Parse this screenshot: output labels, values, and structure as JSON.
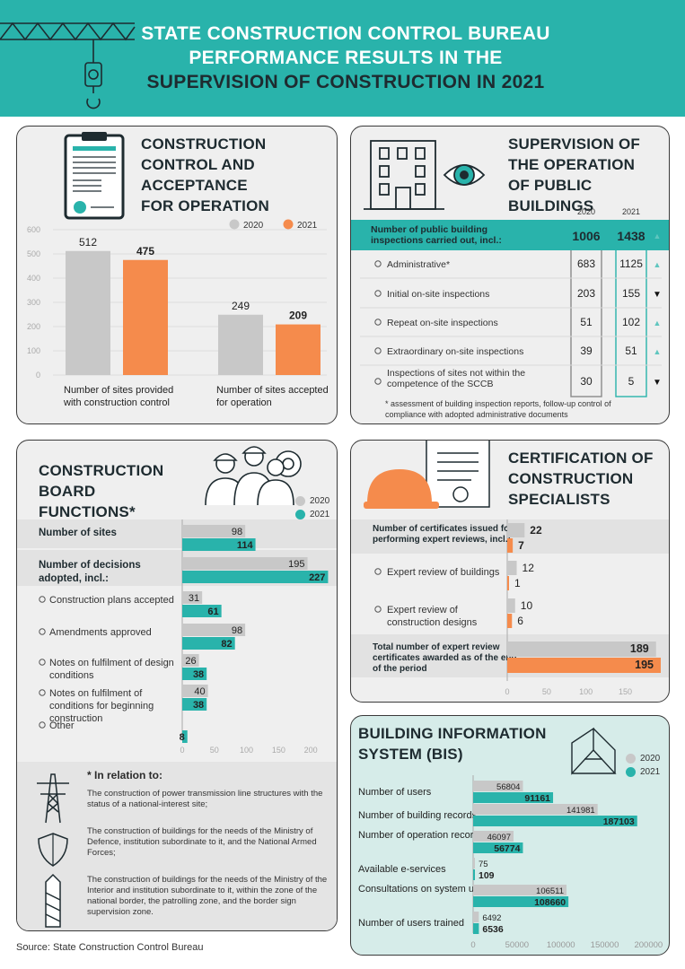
{
  "header": {
    "title_line1": "STATE CONSTRUCTION CONTROL BUREAU",
    "title_line2": "PERFORMANCE RESULTS IN THE",
    "title_line3": "SUPERVISION OF CONSTRUCTION IN 2021"
  },
  "colors": {
    "teal": "#29b3ab",
    "orange": "#f58b4c",
    "gray": "#c8c8c8"
  },
  "legend": {
    "y2020": "2020",
    "y2021": "2021"
  },
  "source": "Source: State Construction Control Bureau",
  "chart_data": [
    {
      "id": "construction_control",
      "type": "bar",
      "title": "CONSTRUCTION CONTROL AND ACCEPTANCE FOR OPERATION",
      "categories": [
        "Number of sites provided with construction control",
        "Number of sites accepted for operation"
      ],
      "series": [
        {
          "name": "2020",
          "values": [
            512,
            249
          ]
        },
        {
          "name": "2021",
          "values": [
            475,
            209
          ]
        }
      ],
      "ylim": [
        0,
        600
      ],
      "yticks": [
        "0",
        "100",
        "200",
        "300",
        "400",
        "500",
        "600"
      ]
    },
    {
      "id": "public_buildings",
      "type": "table",
      "title": "SUPERVISION OF THE OPERATION OF PUBLIC BUILDINGS",
      "columns": [
        "2020",
        "2021"
      ],
      "rows": [
        {
          "label": "Number of public building inspections carried out, incl.:",
          "v2020": "1006",
          "v2021": "1438",
          "trend": "▲"
        },
        {
          "label": "Administrative*",
          "v2020": "683",
          "v2021": "1125",
          "trend": "▲"
        },
        {
          "label": "Initial on-site inspections",
          "v2020": "203",
          "v2021": "155",
          "trend": "▼"
        },
        {
          "label": "Repeat on-site inspections",
          "v2020": "51",
          "v2021": "102",
          "trend": "▲"
        },
        {
          "label": "Extraordinary on-site inspections",
          "v2020": "39",
          "v2021": "51",
          "trend": "▲"
        },
        {
          "label": "Inspections of sites not within the competence of the SCCB",
          "v2020": "30",
          "v2021": "5",
          "trend": "▼"
        }
      ],
      "note": "* assessment of building inspection reports, follow-up control of compliance with adopted administrative documents"
    },
    {
      "id": "board_functions",
      "type": "bar",
      "title": "CONSTRUCTION BOARD FUNCTIONS*",
      "categories": [
        "Number of sites",
        "Number of decisions adopted, incl.:",
        "Construction plans accepted",
        "Amendments approved",
        "Notes on fulfilment of design conditions",
        "Notes on fulfilment of conditions for beginning construction",
        "Other"
      ],
      "series": [
        {
          "name": "2020",
          "values": [
            98,
            195,
            31,
            98,
            26,
            40,
            0
          ]
        },
        {
          "name": "2021",
          "values": [
            114,
            227,
            61,
            82,
            38,
            38,
            8
          ]
        }
      ],
      "xlim": [
        0,
        225
      ],
      "xticks": [
        "0",
        "50",
        "100",
        "150",
        "200"
      ]
    },
    {
      "id": "certification",
      "type": "bar",
      "title": "CERTIFICATION OF CONSTRUCTION SPECIALISTS",
      "categories": [
        "Number of certificates issued for performing expert reviews, incl.:",
        "Expert review of buildings",
        "Expert review of construction designs",
        "Total number of expert review certificates awarded as of the end of the period"
      ],
      "series": [
        {
          "name": "2020",
          "values": [
            22,
            12,
            10,
            189
          ]
        },
        {
          "name": "2021",
          "values": [
            7,
            1,
            6,
            195
          ]
        }
      ],
      "xlim": [
        0,
        195
      ],
      "xticks": [
        "0",
        "50",
        "100",
        "150"
      ]
    },
    {
      "id": "bis",
      "type": "bar",
      "title": "BUILDING INFORMATION SYSTEM (BIS)",
      "categories": [
        "Number of users",
        "Number of building records",
        "Number of operation records",
        "Available e-services",
        "Consultations on system use",
        "Number of users trained"
      ],
      "series": [
        {
          "name": "2020",
          "values": [
            56804,
            141981,
            46097,
            75,
            106511,
            6492
          ]
        },
        {
          "name": "2021",
          "values": [
            91161,
            187103,
            56774,
            109,
            108660,
            6536
          ]
        }
      ],
      "xlim": [
        0,
        215000
      ],
      "xticks": [
        "0",
        "50000",
        "100000",
        "150000",
        "200000"
      ]
    }
  ],
  "footnote": {
    "heading": "* In relation to:",
    "items": [
      "The construction of power transmission line structures with the status of a national-interest site;",
      "The construction of buildings for the needs of the Ministry of Defence, institution subordinate to it, and the National Armed Forces;",
      "The construction of buildings for the needs of the Ministry of the Interior and institution subordinate to it, within the zone of the national border, the patrolling zone, and the border sign supervision zone."
    ]
  }
}
